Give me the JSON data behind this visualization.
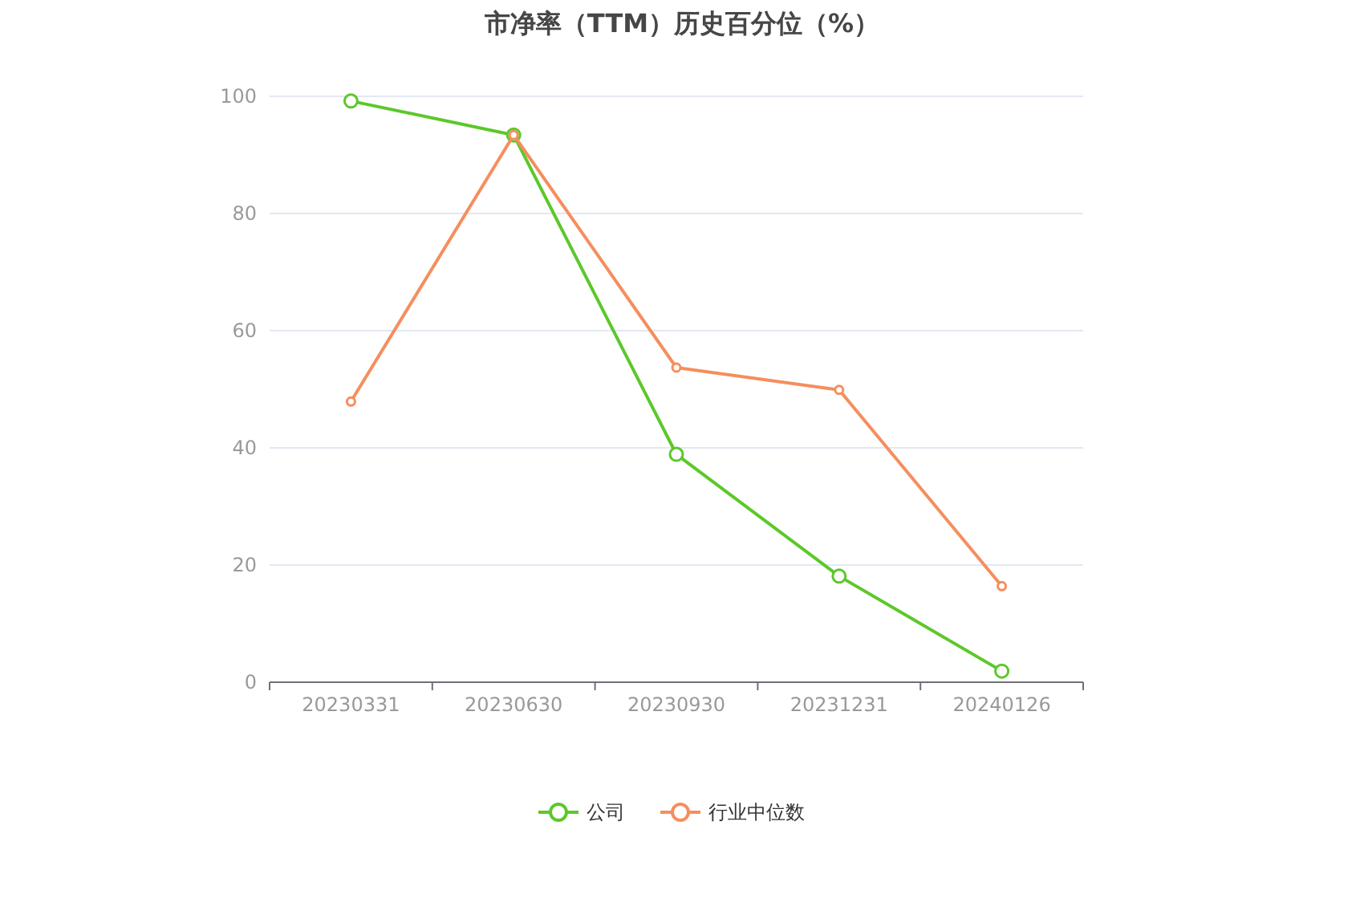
{
  "chart_data": {
    "type": "line",
    "title": "市净率（TTM）历史百分位（%）",
    "categories": [
      "20230331",
      "20230630",
      "20230930",
      "20231231",
      "20240126"
    ],
    "series": [
      {
        "name": "公司",
        "color": "#5cc82a",
        "values": [
          99.2,
          93.4,
          38.9,
          18.1,
          1.9
        ]
      },
      {
        "name": "行业中位数",
        "color": "#f58e5e",
        "values": [
          47.9,
          93.4,
          53.7,
          49.9,
          16.4
        ]
      }
    ],
    "ylim": [
      0,
      100
    ],
    "yticks": [
      0,
      20,
      40,
      60,
      80,
      100
    ],
    "grid": "y",
    "legend": "bottom",
    "marker": "circle",
    "line_style": "solid"
  }
}
